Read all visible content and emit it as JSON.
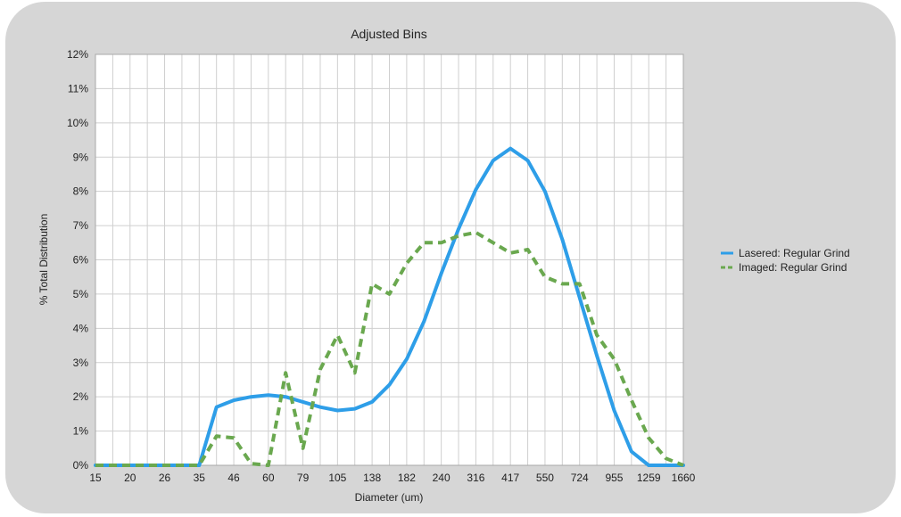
{
  "chart_data": {
    "type": "line",
    "title": "Adjusted Bins",
    "xlabel": "Diameter (um)",
    "ylabel": "% Total Distribution",
    "ylim": [
      0,
      12
    ],
    "y_ticks": [
      "0%",
      "1%",
      "2%",
      "3%",
      "4%",
      "5%",
      "6%",
      "7%",
      "8%",
      "9%",
      "10%",
      "11%",
      "12%"
    ],
    "x_tick_labels": [
      "15",
      "20",
      "26",
      "35",
      "46",
      "60",
      "79",
      "105",
      "138",
      "182",
      "240",
      "316",
      "417",
      "550",
      "724",
      "955",
      "1259",
      "1660"
    ],
    "x_points": 35,
    "grid": true,
    "legend_position": "right",
    "series": [
      {
        "name": "Lasered: Regular Grind",
        "color": "#2e9ee8",
        "style": "solid",
        "values": [
          0,
          0,
          0,
          0,
          0,
          0,
          0,
          1.7,
          1.9,
          2.0,
          2.05,
          2.0,
          1.85,
          1.7,
          1.6,
          1.65,
          1.85,
          2.35,
          3.1,
          4.2,
          5.6,
          6.9,
          8.05,
          8.9,
          9.25,
          8.9,
          8.0,
          6.6,
          4.9,
          3.2,
          1.6,
          0.4,
          0,
          0,
          0
        ]
      },
      {
        "name": "Imaged: Regular Grind",
        "color": "#6aa84f",
        "style": "dashed",
        "values": [
          0,
          0,
          0,
          0,
          0,
          0,
          0,
          0.85,
          0.8,
          0.05,
          0,
          2.7,
          0.5,
          2.8,
          3.8,
          2.7,
          5.3,
          5.0,
          5.9,
          6.5,
          6.5,
          6.7,
          6.8,
          6.5,
          6.2,
          6.3,
          5.5,
          5.3,
          5.3,
          3.8,
          3.1,
          1.9,
          0.8,
          0.2,
          0
        ]
      }
    ]
  }
}
